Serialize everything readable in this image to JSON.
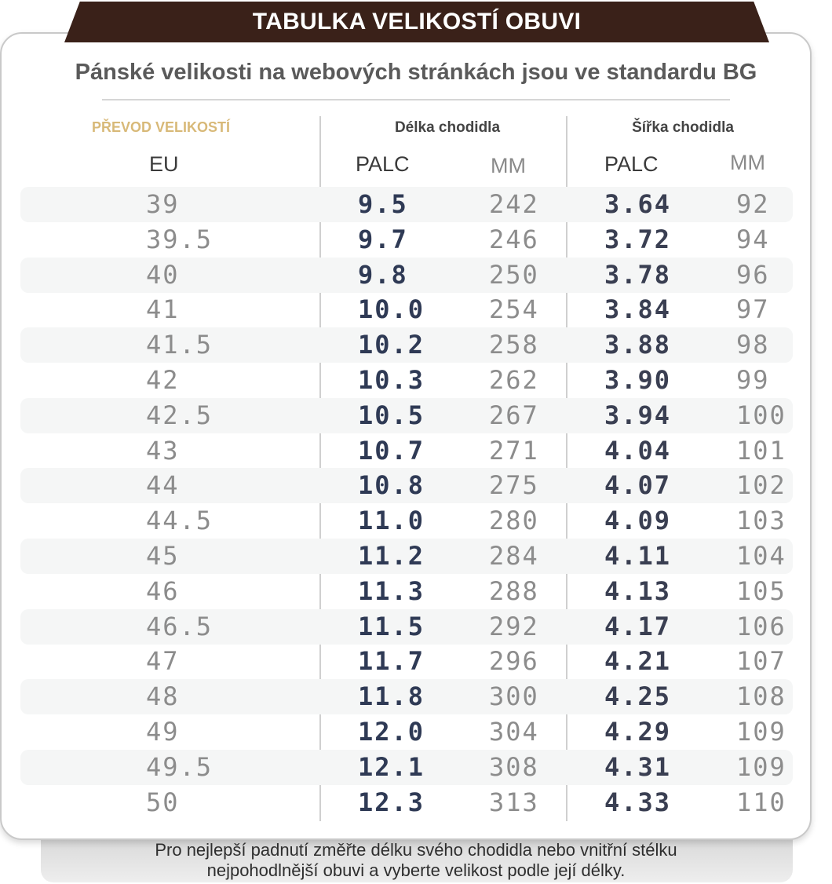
{
  "header": {
    "title": "TABULKA VELIKOSTÍ OBUVI"
  },
  "subtitle": "Pánské velikosti na webových stránkách jsou ve standardu BG",
  "table": {
    "conversion_label": "PŘEVOD VELIKOSTÍ",
    "length_group": "Délka chodidla",
    "width_group": "Šířka chodidla",
    "columns": {
      "eu": "EU",
      "palc_length": "PALC",
      "mm_length": "MM",
      "palc_width": "PALC",
      "mm_width": "MM"
    },
    "rows": [
      {
        "eu": "39",
        "palc_length": "9.5",
        "mm_length": "242",
        "palc_width": "3.64",
        "mm_width": "92"
      },
      {
        "eu": "39.5",
        "palc_length": "9.7",
        "mm_length": "246",
        "palc_width": "3.72",
        "mm_width": "94"
      },
      {
        "eu": "40",
        "palc_length": "9.8",
        "mm_length": "250",
        "palc_width": "3.78",
        "mm_width": "96"
      },
      {
        "eu": "41",
        "palc_length": "10.0",
        "mm_length": "254",
        "palc_width": "3.84",
        "mm_width": "97"
      },
      {
        "eu": "41.5",
        "palc_length": "10.2",
        "mm_length": "258",
        "palc_width": "3.88",
        "mm_width": "98"
      },
      {
        "eu": "42",
        "palc_length": "10.3",
        "mm_length": "262",
        "palc_width": "3.90",
        "mm_width": "99"
      },
      {
        "eu": "42.5",
        "palc_length": "10.5",
        "mm_length": "267",
        "palc_width": "3.94",
        "mm_width": "100"
      },
      {
        "eu": "43",
        "palc_length": "10.7",
        "mm_length": "271",
        "palc_width": "4.04",
        "mm_width": "101"
      },
      {
        "eu": "44",
        "palc_length": "10.8",
        "mm_length": "275",
        "palc_width": "4.07",
        "mm_width": "102"
      },
      {
        "eu": "44.5",
        "palc_length": "11.0",
        "mm_length": "280",
        "palc_width": "4.09",
        "mm_width": "103"
      },
      {
        "eu": "45",
        "palc_length": "11.2",
        "mm_length": "284",
        "palc_width": "4.11",
        "mm_width": "104"
      },
      {
        "eu": "46",
        "palc_length": "11.3",
        "mm_length": "288",
        "palc_width": "4.13",
        "mm_width": "105"
      },
      {
        "eu": "46.5",
        "palc_length": "11.5",
        "mm_length": "292",
        "palc_width": "4.17",
        "mm_width": "106"
      },
      {
        "eu": "47",
        "palc_length": "11.7",
        "mm_length": "296",
        "palc_width": "4.21",
        "mm_width": "107"
      },
      {
        "eu": "48",
        "palc_length": "11.8",
        "mm_length": "300",
        "palc_width": "4.25",
        "mm_width": "108"
      },
      {
        "eu": "49",
        "palc_length": "12.0",
        "mm_length": "304",
        "palc_width": "4.29",
        "mm_width": "109"
      },
      {
        "eu": "49.5",
        "palc_length": "12.1",
        "mm_length": "308",
        "palc_width": "4.31",
        "mm_width": "109"
      },
      {
        "eu": "50",
        "palc_length": "12.3",
        "mm_length": "313",
        "palc_width": "4.33",
        "mm_width": "110"
      }
    ]
  },
  "footer": {
    "line1": "Pro nejlepší padnutí změřte délku svého chodidla nebo vnitřní stélku",
    "line2": "nejpohodlnější obuvi a vyberte velikost podle její délky."
  },
  "colors": {
    "header_bg": "#3a2119",
    "conversion_label": "#d8b978",
    "palc_text": "#2f3a55",
    "mm_text": "#8c8c8c"
  }
}
